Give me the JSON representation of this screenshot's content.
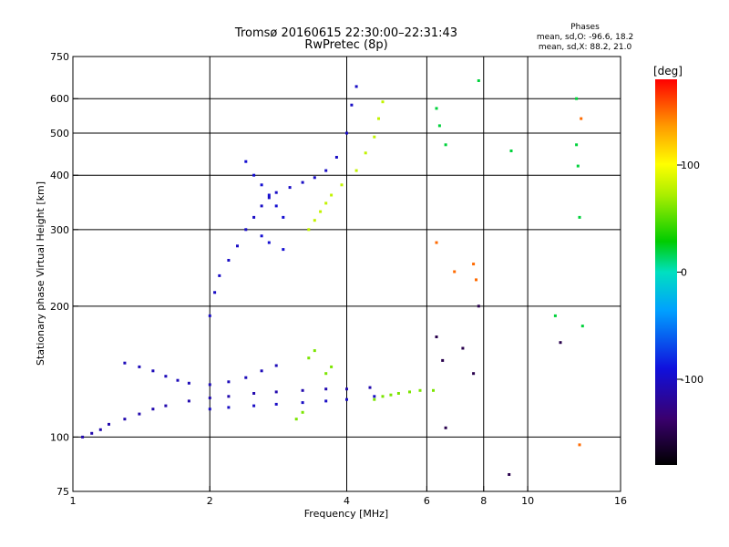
{
  "chart_data": {
    "type": "scatter",
    "title": "Tromsø 20160615 22:30:00–22:31:43",
    "subtitle": "RwPretec (8p)",
    "xlabel": "Frequency [MHz]",
    "ylabel": "Stationary phase Virtual Height [km]",
    "x_scale": "log",
    "y_scale": "log",
    "xlim": [
      1,
      16
    ],
    "ylim": [
      75,
      750
    ],
    "x_ticks": [
      1,
      2,
      4,
      6,
      8,
      10,
      16
    ],
    "y_ticks": [
      75,
      100,
      200,
      300,
      400,
      500,
      600,
      750
    ],
    "x_grid": [
      2,
      4,
      6,
      8,
      10
    ],
    "y_grid": [
      100,
      200,
      300,
      400,
      500,
      600
    ],
    "phases": {
      "heading": "Phases",
      "line_o": "mean, sd,O:  -96.6, 18.2",
      "line_x": "mean, sd,X:   88.2, 21.0"
    },
    "colorbar": {
      "label": "[deg]",
      "range": [
        -180,
        180
      ],
      "ticks": [
        "100",
        "0",
        "-100"
      ],
      "tick_values": [
        100,
        0,
        -100
      ]
    },
    "series": [
      {
        "phase": -110,
        "points": [
          [
            1.05,
            100
          ],
          [
            1.1,
            102
          ],
          [
            1.15,
            104
          ],
          [
            1.2,
            107
          ],
          [
            1.3,
            110
          ],
          [
            1.4,
            113
          ],
          [
            1.5,
            116
          ],
          [
            1.6,
            118
          ],
          [
            1.8,
            121
          ],
          [
            2.0,
            123
          ],
          [
            2.2,
            124
          ],
          [
            2.5,
            126
          ],
          [
            2.8,
            127
          ],
          [
            3.2,
            128
          ],
          [
            3.6,
            129
          ],
          [
            4.0,
            129
          ],
          [
            4.5,
            130
          ]
        ]
      },
      {
        "phase": -105,
        "points": [
          [
            1.3,
            148
          ],
          [
            1.4,
            145
          ],
          [
            1.5,
            142
          ],
          [
            1.6,
            138
          ],
          [
            1.7,
            135
          ],
          [
            1.8,
            133
          ],
          [
            2.0,
            132
          ],
          [
            2.2,
            134
          ],
          [
            2.4,
            137
          ],
          [
            2.6,
            142
          ],
          [
            2.8,
            146
          ]
        ]
      },
      {
        "phase": -100,
        "points": [
          [
            2.0,
            116
          ],
          [
            2.2,
            117
          ],
          [
            2.5,
            118
          ],
          [
            2.8,
            119
          ],
          [
            3.2,
            120
          ],
          [
            3.6,
            121
          ],
          [
            4.0,
            122
          ],
          [
            4.6,
            124
          ]
        ]
      },
      {
        "phase": -100,
        "points": [
          [
            2.0,
            190
          ],
          [
            2.05,
            215
          ],
          [
            2.1,
            235
          ],
          [
            2.2,
            255
          ],
          [
            2.3,
            275
          ],
          [
            2.4,
            300
          ],
          [
            2.5,
            320
          ],
          [
            2.6,
            340
          ],
          [
            2.7,
            355
          ],
          [
            2.8,
            365
          ],
          [
            3.0,
            375
          ],
          [
            3.2,
            385
          ],
          [
            3.4,
            395
          ],
          [
            3.6,
            410
          ],
          [
            3.8,
            440
          ],
          [
            4.0,
            500
          ],
          [
            4.1,
            580
          ],
          [
            4.2,
            640
          ]
        ]
      },
      {
        "phase": -95,
        "points": [
          [
            2.4,
            430
          ],
          [
            2.5,
            400
          ],
          [
            2.6,
            380
          ],
          [
            2.7,
            360
          ],
          [
            2.8,
            340
          ],
          [
            2.9,
            320
          ],
          [
            2.6,
            290
          ],
          [
            2.7,
            280
          ],
          [
            2.9,
            270
          ]
        ]
      },
      {
        "phase": 60,
        "points": [
          [
            3.1,
            110
          ],
          [
            3.2,
            114
          ],
          [
            3.3,
            152
          ],
          [
            3.4,
            158
          ],
          [
            3.6,
            140
          ],
          [
            3.7,
            145
          ],
          [
            4.6,
            122
          ],
          [
            4.8,
            124
          ],
          [
            5.0,
            125
          ],
          [
            5.2,
            126
          ],
          [
            5.5,
            127
          ],
          [
            5.8,
            128
          ],
          [
            6.2,
            128
          ]
        ]
      },
      {
        "phase": 80,
        "points": [
          [
            3.3,
            300
          ],
          [
            3.4,
            315
          ],
          [
            3.5,
            330
          ],
          [
            3.6,
            345
          ],
          [
            3.7,
            360
          ],
          [
            3.9,
            380
          ],
          [
            4.2,
            410
          ],
          [
            4.4,
            450
          ],
          [
            4.6,
            490
          ],
          [
            4.7,
            540
          ],
          [
            4.8,
            590
          ]
        ]
      },
      {
        "phase": 20,
        "points": [
          [
            6.3,
            570
          ],
          [
            6.4,
            520
          ],
          [
            6.6,
            470
          ],
          [
            7.8,
            660
          ],
          [
            9.2,
            455
          ],
          [
            11.5,
            190
          ],
          [
            12.8,
            600
          ],
          [
            12.8,
            470
          ],
          [
            12.9,
            420
          ],
          [
            13.0,
            320
          ],
          [
            13.2,
            180
          ]
        ]
      },
      {
        "phase": 150,
        "points": [
          [
            6.3,
            280
          ],
          [
            6.9,
            240
          ],
          [
            7.6,
            250
          ],
          [
            7.7,
            230
          ],
          [
            13.1,
            540
          ],
          [
            13.0,
            96
          ]
        ]
      },
      {
        "phase": -150,
        "points": [
          [
            6.3,
            170
          ],
          [
            6.5,
            150
          ],
          [
            7.2,
            160
          ],
          [
            7.8,
            200
          ],
          [
            9.1,
            82
          ],
          [
            11.8,
            165
          ],
          [
            6.6,
            105
          ],
          [
            7.6,
            140
          ]
        ]
      }
    ]
  }
}
